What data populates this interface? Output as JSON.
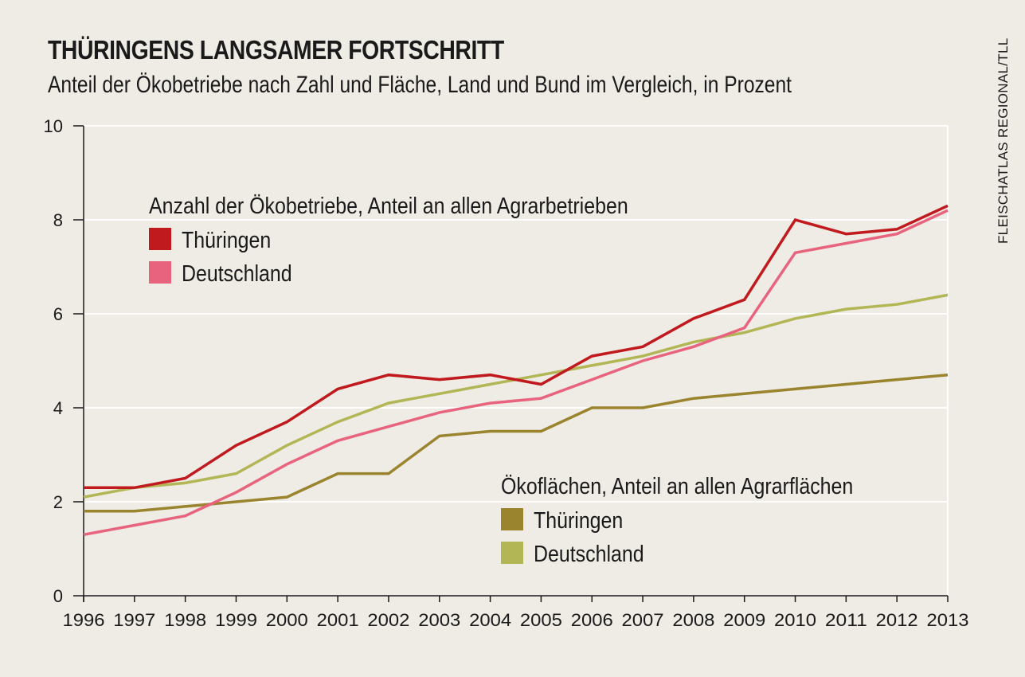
{
  "header": {
    "title": "THÜRINGENS LANGSAMER FORTSCHRITT",
    "subtitle": "Anteil der Ökobetriebe nach Zahl und Fläche, Land und Bund im Vergleich, in Prozent",
    "source": "FLEISCHATLAS REGIONAL/TLL"
  },
  "chart_data": {
    "type": "line",
    "x": [
      1996,
      1997,
      1998,
      1999,
      2000,
      2001,
      2002,
      2003,
      2004,
      2005,
      2006,
      2007,
      2008,
      2009,
      2010,
      2011,
      2012,
      2013
    ],
    "ylim": [
      0,
      10
    ],
    "yticks": [
      0,
      2,
      4,
      6,
      8,
      10
    ],
    "grid": "horizontal",
    "groups": [
      {
        "heading": "Anzahl der Ökobetriebe, Anteil an allen Agrarbetrieben",
        "placement": "upper-left",
        "series": [
          {
            "name": "Thüringen",
            "color": "#c0191e",
            "values": [
              2.3,
              2.3,
              2.5,
              3.2,
              3.7,
              4.4,
              4.7,
              4.6,
              4.7,
              4.5,
              5.1,
              5.3,
              5.9,
              6.3,
              8.0,
              7.7,
              7.8,
              8.3
            ]
          },
          {
            "name": "Deutschland",
            "color": "#e8637e",
            "values": [
              1.3,
              1.5,
              1.7,
              2.2,
              2.8,
              3.3,
              3.6,
              3.9,
              4.1,
              4.2,
              4.6,
              5.0,
              5.3,
              5.7,
              7.3,
              7.5,
              7.7,
              8.2
            ]
          }
        ]
      },
      {
        "heading": "Ökoflächen, Anteil an allen Agrarflächen",
        "placement": "lower-right",
        "series": [
          {
            "name": "Thüringen",
            "color": "#9b842e",
            "values": [
              1.8,
              1.8,
              1.9,
              2.0,
              2.1,
              2.6,
              2.6,
              3.4,
              3.5,
              3.5,
              4.0,
              4.0,
              4.2,
              4.3,
              4.4,
              4.5,
              4.6,
              4.7
            ]
          },
          {
            "name": "Deutschland",
            "color": "#b2b655",
            "values": [
              2.1,
              2.3,
              2.4,
              2.6,
              3.2,
              3.7,
              4.1,
              4.3,
              4.5,
              4.7,
              4.9,
              5.1,
              5.4,
              5.6,
              5.9,
              6.1,
              6.2,
              6.4
            ]
          }
        ]
      }
    ]
  }
}
